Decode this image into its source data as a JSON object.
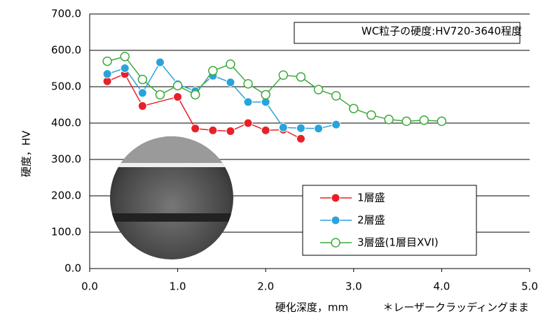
{
  "chart_data": {
    "type": "line",
    "xlabel": "硬化深度，mm",
    "ylabel": "硬度，HV",
    "annotations": [
      "WC粒子の硬度:HV720-3640程度",
      "＊レーザークラッディングまま"
    ],
    "xlim": [
      0,
      5
    ],
    "ylim": [
      0,
      700
    ],
    "xticks": [
      {
        "value": 0,
        "label": "0.0"
      },
      {
        "value": 1,
        "label": "1.0"
      },
      {
        "value": 2,
        "label": "2.0"
      },
      {
        "value": 3,
        "label": "3.0"
      },
      {
        "value": 4,
        "label": "4.0"
      },
      {
        "value": 5,
        "label": "5.0"
      }
    ],
    "yticks": [
      {
        "value": 0,
        "label": "0.0"
      },
      {
        "value": 100,
        "label": "100.0"
      },
      {
        "value": 200,
        "label": "200.0"
      },
      {
        "value": 300,
        "label": "300.0"
      },
      {
        "value": 400,
        "label": "400.0"
      },
      {
        "value": 500,
        "label": "500.0"
      },
      {
        "value": 600,
        "label": "600.0"
      },
      {
        "value": 700,
        "label": "700.0"
      }
    ],
    "grid": true,
    "legend": "lower right",
    "series": [
      {
        "name": "1層盛",
        "color": "#e8202a",
        "marker": "filled",
        "x": [
          0.2,
          0.4,
          0.6,
          1.0,
          1.2,
          1.4,
          1.6,
          1.8,
          2.0,
          2.2,
          2.4
        ],
        "values": [
          515,
          535,
          447,
          472,
          385,
          380,
          378,
          400,
          380,
          382,
          357
        ]
      },
      {
        "name": "2層盛",
        "color": "#29a3dc",
        "marker": "filled",
        "x": [
          0.2,
          0.4,
          0.6,
          0.8,
          1.0,
          1.2,
          1.4,
          1.6,
          1.8,
          2.0,
          2.2,
          2.4,
          2.6,
          2.8
        ],
        "values": [
          535,
          551,
          483,
          567,
          507,
          488,
          530,
          512,
          458,
          458,
          388,
          386,
          385,
          396
        ]
      },
      {
        "name": "3層盛(1層目XVI)",
        "color": "#3daa3d",
        "marker": "open",
        "x": [
          0.2,
          0.4,
          0.6,
          0.8,
          1.0,
          1.2,
          1.4,
          1.6,
          1.8,
          2.0,
          2.2,
          2.4,
          2.6,
          2.8,
          3.0,
          3.2,
          3.4,
          3.6,
          3.8,
          4.0
        ],
        "values": [
          570,
          583,
          520,
          478,
          503,
          478,
          544,
          562,
          508,
          478,
          532,
          527,
          492,
          475,
          440,
          422,
          410,
          405,
          408,
          405
        ]
      }
    ]
  }
}
